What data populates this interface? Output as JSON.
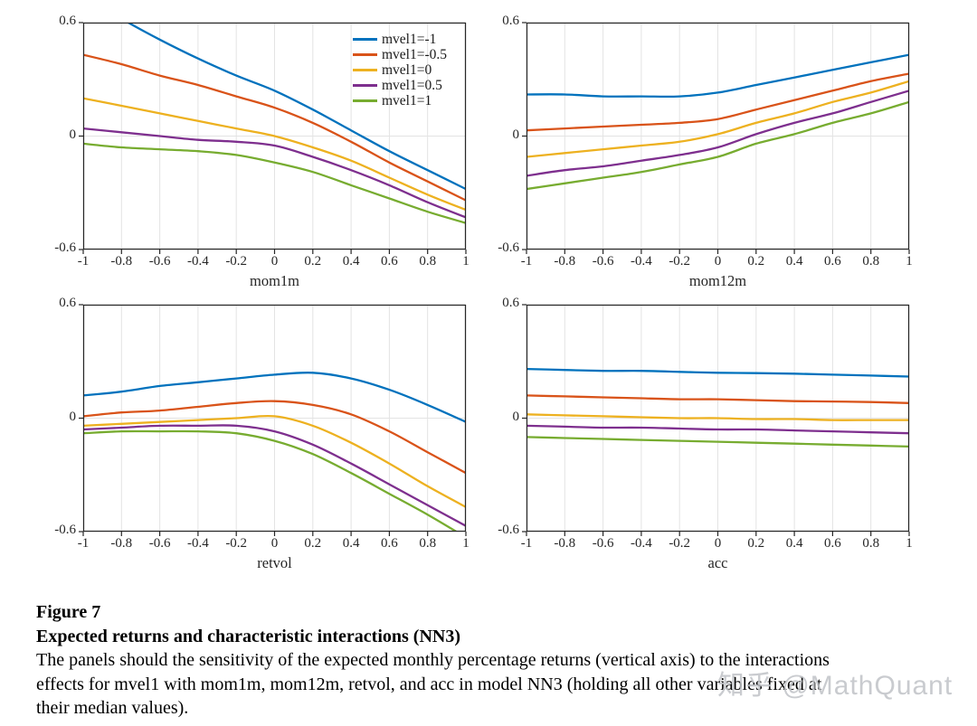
{
  "figure": {
    "label": "Figure 7",
    "title": "Expected returns and characteristic interactions (NN3)",
    "body_lines": [
      "The panels should the sensitivity of the expected monthly percentage returns (vertical axis) to the interactions",
      "effects for mvel1 with mom1m, mom12m, retvol, and acc in model NN3 (holding all other variables fixed at",
      "their median values)."
    ]
  },
  "watermark": "知乎 @MathQuant",
  "colors": {
    "blue": "#0072BD",
    "orange": "#D95319",
    "yellow": "#EDB120",
    "purple": "#7E2F8E",
    "green": "#77AC30",
    "axis": "#262626",
    "grid": "#e3e3e3"
  },
  "legend": {
    "entries": [
      {
        "label": "mvel1=-1",
        "color": "#0072BD"
      },
      {
        "label": "mvel1=-0.5",
        "color": "#D95319"
      },
      {
        "label": "mvel1=0",
        "color": "#EDB120"
      },
      {
        "label": "mvel1=0.5",
        "color": "#7E2F8E"
      },
      {
        "label": "mvel1=1",
        "color": "#77AC30"
      }
    ]
  },
  "axes": {
    "xlim": [
      -1,
      1
    ],
    "ylim": [
      -0.6,
      0.6
    ],
    "xticks": [
      -1,
      -0.8,
      -0.6,
      -0.4,
      -0.2,
      0,
      0.2,
      0.4,
      0.6,
      0.8,
      1
    ],
    "xtick_labels": [
      "-1",
      "-0.8",
      "-0.6",
      "-0.4",
      "-0.2",
      "0",
      "0.2",
      "0.4",
      "0.6",
      "0.8",
      "1"
    ],
    "yticks": [
      0.6,
      0,
      -0.6
    ],
    "ytick_labels": [
      "0.6",
      "0",
      "-0.6"
    ],
    "grid": "on",
    "legend_position": "top-right-inside-first-panel"
  },
  "chart_data": [
    {
      "type": "line",
      "xlabel": "mom1m",
      "x": [
        -1,
        -0.8,
        -0.6,
        -0.4,
        -0.2,
        0,
        0.2,
        0.4,
        0.6,
        0.8,
        1
      ],
      "series": [
        {
          "name": "mvel1=-1",
          "color": "#0072BD",
          "values": [
            0.74,
            0.62,
            0.51,
            0.41,
            0.32,
            0.24,
            0.14,
            0.03,
            -0.08,
            -0.18,
            -0.28
          ]
        },
        {
          "name": "mvel1=-0.5",
          "color": "#D95319",
          "values": [
            0.43,
            0.38,
            0.32,
            0.27,
            0.21,
            0.15,
            0.07,
            -0.03,
            -0.14,
            -0.24,
            -0.34
          ]
        },
        {
          "name": "mvel1=0",
          "color": "#EDB120",
          "values": [
            0.2,
            0.16,
            0.12,
            0.08,
            0.04,
            0.0,
            -0.06,
            -0.13,
            -0.22,
            -0.31,
            -0.39
          ]
        },
        {
          "name": "mvel1=0.5",
          "color": "#7E2F8E",
          "values": [
            0.04,
            0.02,
            0.0,
            -0.02,
            -0.03,
            -0.05,
            -0.11,
            -0.18,
            -0.26,
            -0.35,
            -0.43
          ]
        },
        {
          "name": "mvel1=1",
          "color": "#77AC30",
          "values": [
            -0.04,
            -0.06,
            -0.07,
            -0.08,
            -0.1,
            -0.14,
            -0.19,
            -0.26,
            -0.33,
            -0.4,
            -0.46
          ]
        }
      ]
    },
    {
      "type": "line",
      "xlabel": "mom12m",
      "x": [
        -1,
        -0.8,
        -0.6,
        -0.4,
        -0.2,
        0,
        0.2,
        0.4,
        0.6,
        0.8,
        1
      ],
      "series": [
        {
          "name": "mvel1=-1",
          "color": "#0072BD",
          "values": [
            0.22,
            0.22,
            0.21,
            0.21,
            0.21,
            0.23,
            0.27,
            0.31,
            0.35,
            0.39,
            0.43
          ]
        },
        {
          "name": "mvel1=-0.5",
          "color": "#D95319",
          "values": [
            0.03,
            0.04,
            0.05,
            0.06,
            0.07,
            0.09,
            0.14,
            0.19,
            0.24,
            0.29,
            0.33
          ]
        },
        {
          "name": "mvel1=0",
          "color": "#EDB120",
          "values": [
            -0.11,
            -0.09,
            -0.07,
            -0.05,
            -0.03,
            0.01,
            0.07,
            0.12,
            0.18,
            0.23,
            0.29
          ]
        },
        {
          "name": "mvel1=0.5",
          "color": "#7E2F8E",
          "values": [
            -0.21,
            -0.18,
            -0.16,
            -0.13,
            -0.1,
            -0.06,
            0.01,
            0.07,
            0.12,
            0.18,
            0.24
          ]
        },
        {
          "name": "mvel1=1",
          "color": "#77AC30",
          "values": [
            -0.28,
            -0.25,
            -0.22,
            -0.19,
            -0.15,
            -0.11,
            -0.04,
            0.01,
            0.07,
            0.12,
            0.18
          ]
        }
      ]
    },
    {
      "type": "line",
      "xlabel": "retvol",
      "x": [
        -1,
        -0.8,
        -0.6,
        -0.4,
        -0.2,
        0,
        0.2,
        0.4,
        0.6,
        0.8,
        1
      ],
      "series": [
        {
          "name": "mvel1=-1",
          "color": "#0072BD",
          "values": [
            0.12,
            0.14,
            0.17,
            0.19,
            0.21,
            0.23,
            0.24,
            0.21,
            0.15,
            0.07,
            -0.02
          ]
        },
        {
          "name": "mvel1=-0.5",
          "color": "#D95319",
          "values": [
            0.01,
            0.03,
            0.04,
            0.06,
            0.08,
            0.09,
            0.07,
            0.02,
            -0.07,
            -0.18,
            -0.29
          ]
        },
        {
          "name": "mvel1=0",
          "color": "#EDB120",
          "values": [
            -0.04,
            -0.03,
            -0.02,
            -0.01,
            0.0,
            0.01,
            -0.04,
            -0.13,
            -0.24,
            -0.36,
            -0.47
          ]
        },
        {
          "name": "mvel1=0.5",
          "color": "#7E2F8E",
          "values": [
            -0.06,
            -0.05,
            -0.04,
            -0.04,
            -0.04,
            -0.07,
            -0.14,
            -0.24,
            -0.35,
            -0.46,
            -0.57
          ]
        },
        {
          "name": "mvel1=1",
          "color": "#77AC30",
          "values": [
            -0.08,
            -0.07,
            -0.07,
            -0.07,
            -0.08,
            -0.12,
            -0.19,
            -0.29,
            -0.4,
            -0.51,
            -0.63
          ]
        }
      ]
    },
    {
      "type": "line",
      "xlabel": "acc",
      "x": [
        -1,
        -0.8,
        -0.6,
        -0.4,
        -0.2,
        0,
        0.2,
        0.4,
        0.6,
        0.8,
        1
      ],
      "series": [
        {
          "name": "mvel1=-1",
          "color": "#0072BD",
          "values": [
            0.26,
            0.255,
            0.25,
            0.25,
            0.245,
            0.24,
            0.238,
            0.235,
            0.23,
            0.225,
            0.22
          ]
        },
        {
          "name": "mvel1=-0.5",
          "color": "#D95319",
          "values": [
            0.12,
            0.115,
            0.11,
            0.105,
            0.1,
            0.1,
            0.095,
            0.09,
            0.088,
            0.085,
            0.08
          ]
        },
        {
          "name": "mvel1=0",
          "color": "#EDB120",
          "values": [
            0.02,
            0.015,
            0.01,
            0.005,
            0.0,
            0.0,
            -0.005,
            -0.005,
            -0.01,
            -0.01,
            -0.01
          ]
        },
        {
          "name": "mvel1=0.5",
          "color": "#7E2F8E",
          "values": [
            -0.04,
            -0.045,
            -0.05,
            -0.05,
            -0.055,
            -0.06,
            -0.06,
            -0.065,
            -0.07,
            -0.075,
            -0.08
          ]
        },
        {
          "name": "mvel1=1",
          "color": "#77AC30",
          "values": [
            -0.1,
            -0.105,
            -0.11,
            -0.115,
            -0.12,
            -0.125,
            -0.13,
            -0.135,
            -0.14,
            -0.145,
            -0.15
          ]
        }
      ]
    }
  ]
}
